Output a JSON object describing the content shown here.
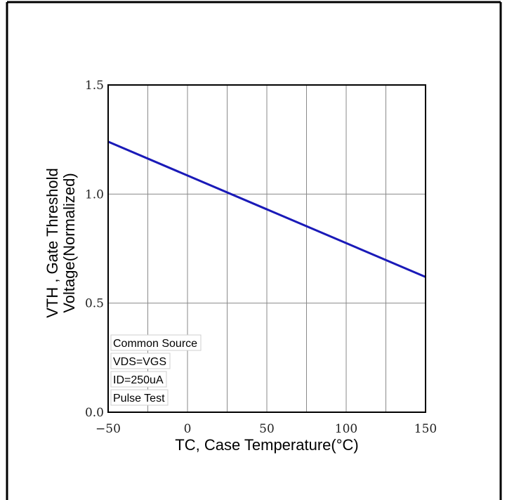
{
  "chart_data": {
    "type": "line",
    "xlabel": "TC, Case Temperature(°C)",
    "ylabel_lines": [
      "VTH , Gate Threshold",
      "Voltage(Normalized)"
    ],
    "xlim": [
      -50,
      150
    ],
    "ylim": [
      0.0,
      1.5
    ],
    "x_ticks": [
      -50,
      0,
      50,
      100,
      150
    ],
    "x_tick_labels": [
      "−50",
      "0",
      "50",
      "100",
      "150"
    ],
    "y_ticks": [
      0.0,
      0.5,
      1.0,
      1.5
    ],
    "y_tick_labels": [
      "0.0",
      "0.5",
      "1.0",
      "1.5"
    ],
    "x_grid": [
      -50,
      -25,
      0,
      25,
      50,
      75,
      100,
      125,
      150
    ],
    "grid": true,
    "series": [
      {
        "x": [
          -50,
          150
        ],
        "y": [
          1.24,
          0.62
        ],
        "color": "#1a1ab8"
      }
    ],
    "annotations": [
      "Common Source",
      "VDS=VGS",
      "ID=250uA",
      "Pulse Test"
    ]
  }
}
